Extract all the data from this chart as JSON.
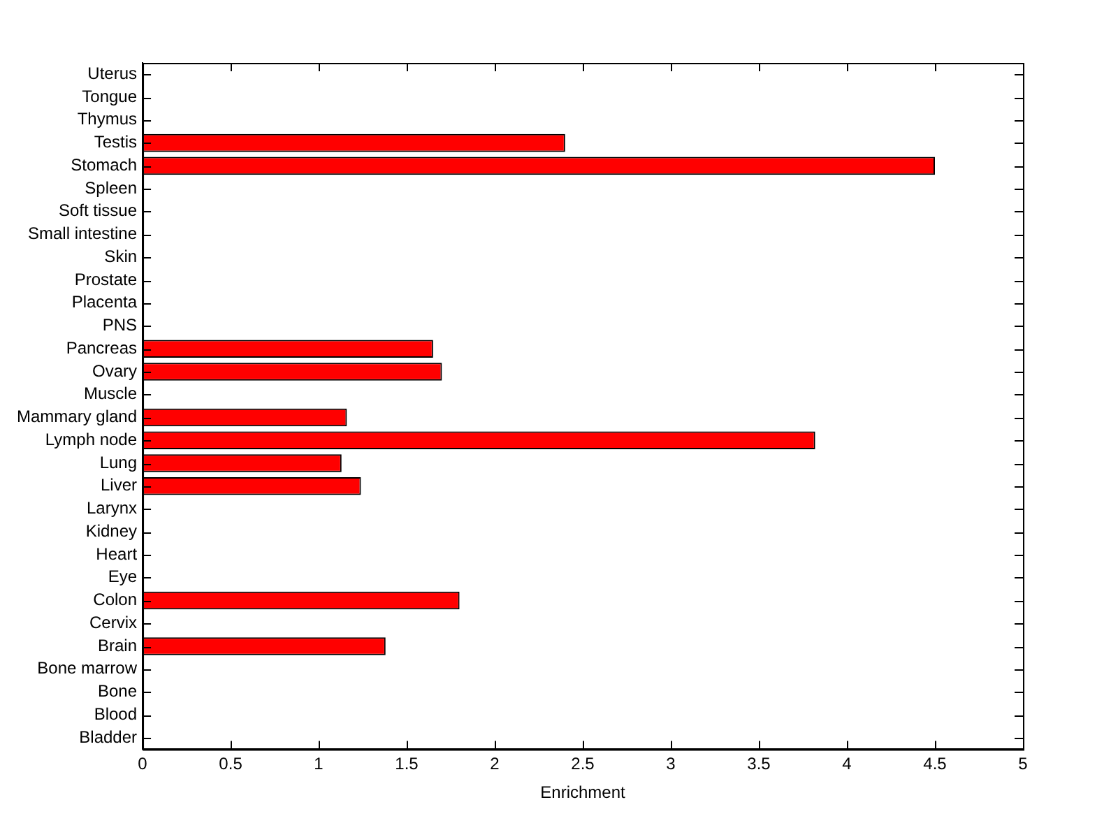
{
  "chart_data": {
    "type": "bar",
    "orientation": "horizontal",
    "xlabel": "Enrichment",
    "categories": [
      "Uterus",
      "Tongue",
      "Thymus",
      "Testis",
      "Stomach",
      "Spleen",
      "Soft tissue",
      "Small intestine",
      "Skin",
      "Prostate",
      "Placenta",
      "PNS",
      "Pancreas",
      "Ovary",
      "Muscle",
      "Mammary gland",
      "Lymph node",
      "Lung",
      "Liver",
      "Larynx",
      "Kidney",
      "Heart",
      "Eye",
      "Colon",
      "Cervix",
      "Brain",
      "Bone marrow",
      "Bone",
      "Blood",
      "Bladder"
    ],
    "values": [
      0,
      0,
      0,
      2.4,
      4.5,
      0,
      0,
      0,
      0,
      0,
      0,
      0,
      1.65,
      1.7,
      0,
      1.16,
      3.82,
      1.13,
      1.24,
      0,
      0,
      0,
      0,
      1.8,
      0,
      1.38,
      0,
      0,
      0,
      0
    ],
    "color": "#ff0000",
    "xlim": [
      0,
      5
    ],
    "xticks": [
      0,
      0.5,
      1,
      1.5,
      2,
      2.5,
      3,
      3.5,
      4,
      4.5,
      5
    ],
    "grid": false,
    "legend": false
  }
}
